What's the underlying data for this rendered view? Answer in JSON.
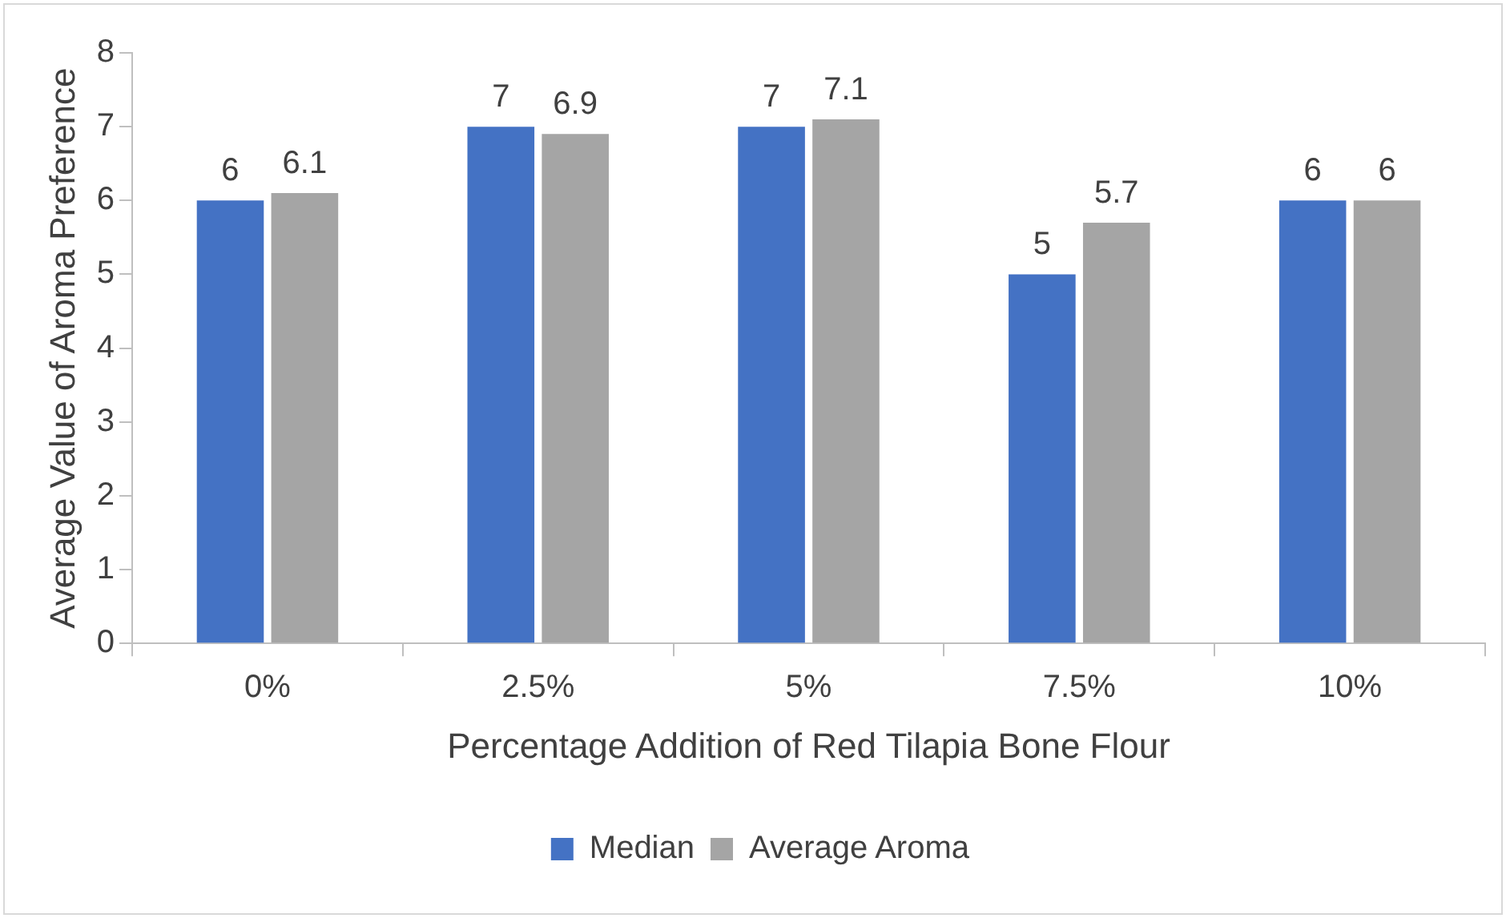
{
  "chart_data": {
    "type": "bar",
    "xlabel": "Percentage Addition of Red Tilapia Bone Flour",
    "ylabel": "Average Value of Aroma Preference",
    "categories": [
      "0%",
      "2.5%",
      "5%",
      "7.5%",
      "10%"
    ],
    "series": [
      {
        "name": "Median",
        "color": "#4472c4",
        "values": [
          6,
          7,
          7,
          5,
          6
        ]
      },
      {
        "name": "Average Aroma",
        "color": "#a5a5a5",
        "values": [
          6.1,
          6.9,
          7.1,
          5.7,
          6
        ]
      }
    ],
    "ylim": [
      0,
      8
    ],
    "yticks": [
      0,
      1,
      2,
      3,
      4,
      5,
      6,
      7,
      8
    ],
    "grid": false,
    "legend": "bottom",
    "data_labels": true
  }
}
